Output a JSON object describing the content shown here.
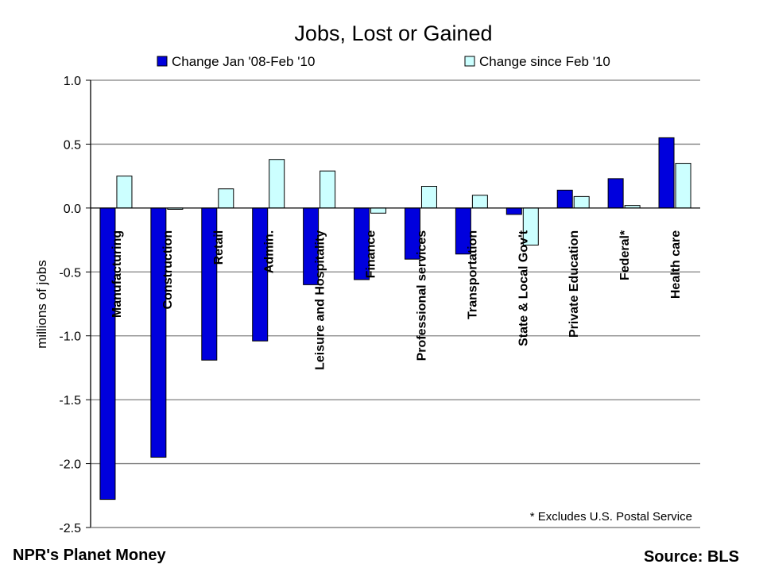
{
  "chart_data": {
    "type": "bar",
    "title": "Jobs, Lost or Gained",
    "ylabel": "millions of jobs",
    "xlabel": "",
    "ylim": [
      -2.5,
      1.0
    ],
    "yticks": [
      "1.0",
      "0.5",
      "0.0",
      "-0.5",
      "-1.0",
      "-1.5",
      "-2.0",
      "-2.5"
    ],
    "grid": true,
    "legend_position": "top",
    "categories": [
      "Manufacturing",
      "Construction",
      "Retail",
      "Admin.",
      "Leisure and Hospitality",
      "Finance",
      "Professional services",
      "Transportation",
      "State & Local Gov't",
      "Private Education",
      "Federal*",
      "Health care"
    ],
    "series": [
      {
        "name": "Change Jan '08-Feb '10",
        "color": "#0000dd",
        "values": [
          -2.28,
          -1.95,
          -1.19,
          -1.04,
          -0.6,
          -0.56,
          -0.4,
          -0.36,
          -0.05,
          0.14,
          0.23,
          0.55
        ]
      },
      {
        "name": "Change since Feb '10",
        "color": "#ccffff",
        "values": [
          0.25,
          -0.01,
          0.15,
          0.38,
          0.29,
          -0.04,
          0.17,
          0.1,
          -0.29,
          0.09,
          0.02,
          0.35
        ]
      }
    ],
    "annotation": "* Excludes U.S. Postal Service"
  },
  "footer": {
    "left": "NPR's Planet Money",
    "right": "Source: BLS"
  }
}
